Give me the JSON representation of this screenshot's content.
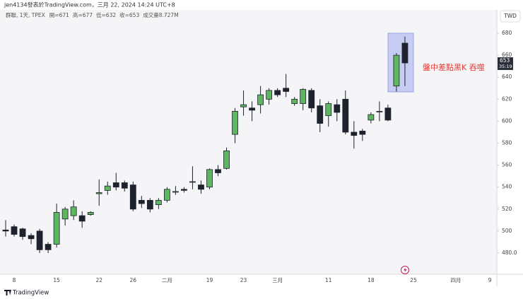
{
  "header": {
    "author_line": "jen4134發表於TradingView.com，三月 22, 2024 14:24 UTC+8",
    "brand": "TradingView"
  },
  "chart_data": {
    "type": "candlestick",
    "title": "群聯, 1天, TPEX",
    "legend_items": [
      "開=671",
      "高=677",
      "低=632",
      "收=653",
      "成交量8.727M"
    ],
    "currency": "TWD",
    "annotation": "盤中差點黑K 吞噬",
    "price_label": "653",
    "countdown": "35:19",
    "categories": [
      null,
      "8",
      null,
      null,
      null,
      null,
      "15",
      null,
      null,
      null,
      null,
      "22",
      null,
      null,
      null,
      "26",
      null,
      null,
      null,
      "二月",
      null,
      null,
      null,
      null,
      "19",
      null,
      null,
      null,
      "23",
      null,
      null,
      null,
      "三月",
      null,
      null,
      null,
      null,
      null,
      "11",
      null,
      null,
      null,
      null,
      "18",
      null,
      null,
      null,
      null,
      "25",
      null,
      null,
      null,
      null,
      "四月",
      null,
      null,
      null,
      "9"
    ],
    "open": [
      501,
      504,
      502,
      496,
      500,
      488,
      488,
      511,
      514,
      514,
      515,
      534,
      537,
      544,
      544,
      542,
      528,
      528,
      524,
      528,
      536,
      538,
      545,
      542,
      540,
      556,
      557,
      588,
      613,
      612,
      615,
      620,
      628,
      630,
      616,
      616,
      628,
      614,
      605,
      615,
      620,
      590,
      591,
      601,
      609,
      612,
      632,
      671,
      null,
      null,
      null,
      null,
      null,
      null,
      null,
      null,
      null,
      null
    ],
    "high": [
      510,
      506,
      503,
      498,
      502,
      490,
      525,
      522,
      528,
      518,
      518,
      547,
      545,
      553,
      546,
      545,
      532,
      530,
      530,
      540,
      541,
      540,
      559,
      546,
      557,
      560,
      576,
      612,
      628,
      618,
      632,
      630,
      630,
      643,
      622,
      630,
      630,
      620,
      618,
      620,
      628,
      600,
      593,
      608,
      618,
      615,
      662,
      677,
      null,
      null,
      null,
      null,
      null,
      null,
      null,
      null,
      null,
      null
    ],
    "low": [
      495,
      495,
      492,
      488,
      480,
      480,
      485,
      505,
      510,
      503,
      514,
      523,
      533,
      537,
      536,
      518,
      521,
      517,
      520,
      526,
      533,
      535,
      538,
      534,
      538,
      550,
      556,
      580,
      605,
      600,
      607,
      615,
      622,
      622,
      614,
      610,
      608,
      590,
      595,
      600,
      588,
      575,
      582,
      598,
      600,
      600,
      627,
      632,
      null,
      null,
      null,
      null,
      null,
      null,
      null,
      null,
      null,
      null
    ],
    "close": [
      500,
      497,
      495,
      493,
      483,
      483,
      517,
      520,
      522,
      509,
      517,
      535,
      541,
      540,
      539,
      520,
      525,
      520,
      528,
      538,
      536,
      537,
      545,
      538,
      556,
      553,
      573,
      609,
      615,
      610,
      624,
      628,
      624,
      627,
      620,
      629,
      612,
      598,
      616,
      608,
      590,
      587,
      588,
      606,
      609,
      601,
      660,
      653,
      null,
      null,
      null,
      null,
      null,
      null,
      null,
      null,
      null,
      null
    ],
    "up_color": "#5cb85c",
    "down_color": "#1e222d",
    "ylim": [
      460.7,
      697.4
    ],
    "yticks": [
      {
        "value": 480,
        "label": "480.0"
      },
      500,
      520,
      540,
      560,
      580,
      600,
      620,
      640,
      660,
      680
    ]
  }
}
